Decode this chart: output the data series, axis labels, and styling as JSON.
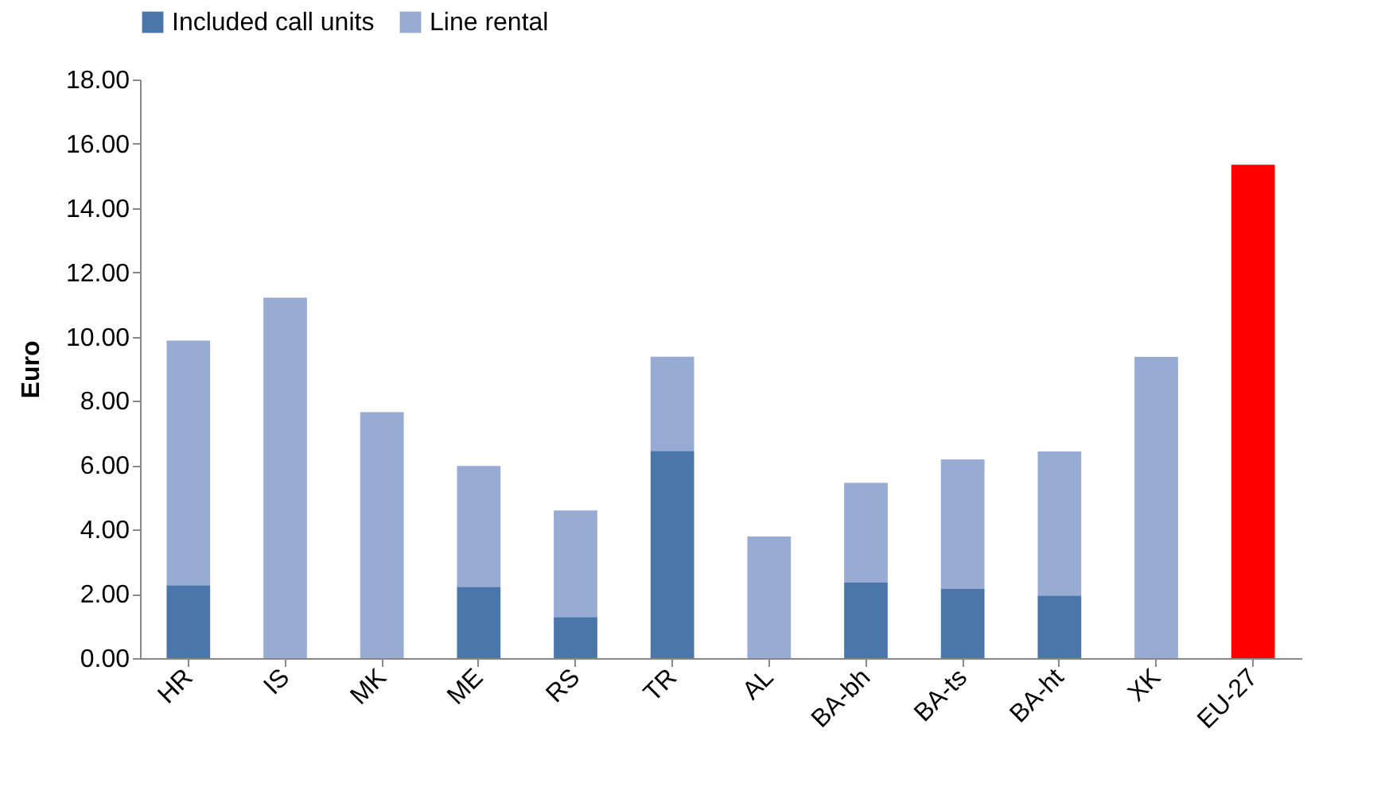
{
  "chart_data": {
    "type": "bar",
    "stacked": true,
    "ylabel": "Euro",
    "legend": "top",
    "grid": false,
    "categories": [
      "HR",
      "IS",
      "MK",
      "ME",
      "RS",
      "TR",
      "AL",
      "BA-bh",
      "BA-ts",
      "BA-ht",
      "XK",
      "EU-27"
    ],
    "series": [
      {
        "name": "Included call units",
        "color": "#4a76aa",
        "values": [
          2.27,
          null,
          null,
          2.22,
          1.28,
          6.45,
          null,
          2.35,
          2.15,
          1.95,
          null,
          null
        ]
      },
      {
        "name": "Line rental",
        "color": "#98abd2",
        "values": [
          7.61,
          11.21,
          7.65,
          3.76,
          3.31,
          2.93,
          3.78,
          3.1,
          4.03,
          4.48,
          9.37,
          null
        ]
      },
      {
        "color": "#ff0000",
        "values": [
          null,
          null,
          null,
          null,
          null,
          null,
          null,
          null,
          null,
          null,
          null,
          15.35
        ]
      }
    ],
    "ylim": [
      0,
      18
    ],
    "yticks": [
      {
        "value": 0,
        "label": "0.00"
      },
      {
        "value": 2,
        "label": "2.00"
      },
      {
        "value": 4,
        "label": "4.00"
      },
      {
        "value": 6,
        "label": "6.00"
      },
      {
        "value": 8,
        "label": "8.00"
      },
      {
        "value": 10,
        "label": "10.00"
      },
      {
        "value": 12,
        "label": "12.00"
      },
      {
        "value": 14,
        "label": "14.00"
      },
      {
        "value": 16,
        "label": "16.00"
      },
      {
        "value": 18,
        "label": "18.00"
      }
    ]
  }
}
